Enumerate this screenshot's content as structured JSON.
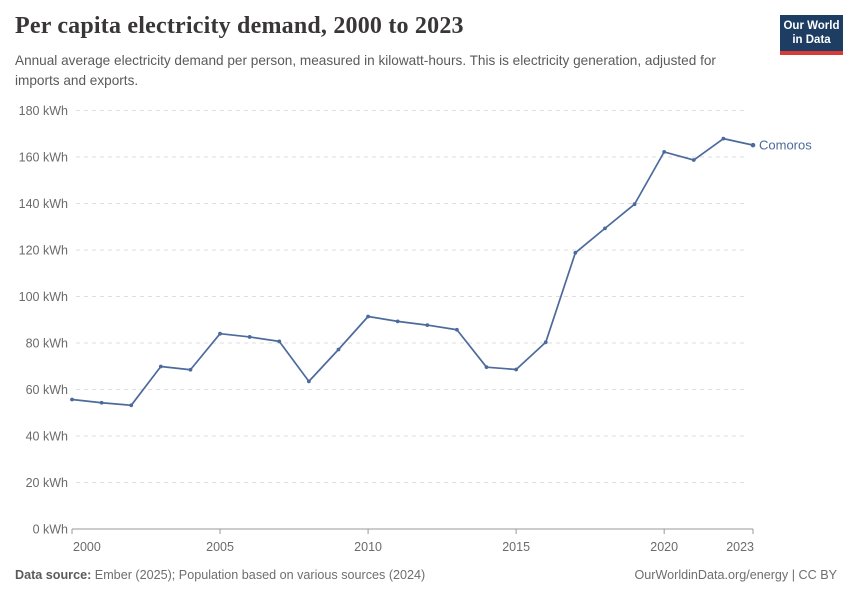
{
  "header": {
    "title": "Per capita electricity demand, 2000 to 2023",
    "subtitle": "Annual average electricity demand per person, measured in kilowatt-hours. This is electricity generation, adjusted for imports and exports."
  },
  "logo": {
    "line1": "Our World",
    "line2": "in Data"
  },
  "chart_data": {
    "type": "line",
    "title": "Per capita electricity demand, 2000 to 2023",
    "unit": "kWh",
    "x": [
      2000,
      2001,
      2002,
      2003,
      2004,
      2005,
      2006,
      2007,
      2008,
      2009,
      2010,
      2011,
      2012,
      2013,
      2014,
      2015,
      2016,
      2017,
      2018,
      2019,
      2020,
      2021,
      2022,
      2023
    ],
    "series": [
      {
        "name": "Comoros",
        "color": "#4c6a9c",
        "values": [
          55.7,
          54.3,
          53.2,
          69.9,
          68.5,
          84.0,
          82.6,
          80.7,
          63.5,
          77.2,
          91.4,
          89.3,
          87.7,
          85.7,
          69.6,
          68.6,
          80.3,
          118.8,
          129.3,
          139.7,
          162.2,
          158.7,
          167.9,
          165.1
        ]
      }
    ],
    "xlim": [
      2000,
      2023
    ],
    "ylim": [
      0,
      180
    ],
    "yticks": [
      {
        "value": 0,
        "label": "0 kWh"
      },
      {
        "value": 20,
        "label": "20 kWh"
      },
      {
        "value": 40,
        "label": "40 kWh"
      },
      {
        "value": 60,
        "label": "60 kWh"
      },
      {
        "value": 80,
        "label": "80 kWh"
      },
      {
        "value": 100,
        "label": "100 kWh"
      },
      {
        "value": 120,
        "label": "120 kWh"
      },
      {
        "value": 140,
        "label": "140 kWh"
      },
      {
        "value": 160,
        "label": "160 kWh"
      },
      {
        "value": 180,
        "label": "180 kWh"
      }
    ],
    "xticks": [
      {
        "value": 2000,
        "label": "2000"
      },
      {
        "value": 2005,
        "label": "2005"
      },
      {
        "value": 2010,
        "label": "2010"
      },
      {
        "value": 2015,
        "label": "2015"
      },
      {
        "value": 2020,
        "label": "2020"
      },
      {
        "value": 2023,
        "label": "2023"
      }
    ],
    "grid": "horizontal-dashed",
    "legend_position": "end-of-line"
  },
  "footer": {
    "source_label": "Data source:",
    "source_text": " Ember (2025); Population based on various sources (2024)",
    "credit": "OurWorldinData.org/energy | CC BY"
  },
  "colors": {
    "line": "#4c6a9c",
    "grid": "#dedede",
    "axis": "#999999",
    "tick_text": "#6b6b6b",
    "logo_bg": "#1d3d63",
    "logo_red": "#d93a35"
  }
}
